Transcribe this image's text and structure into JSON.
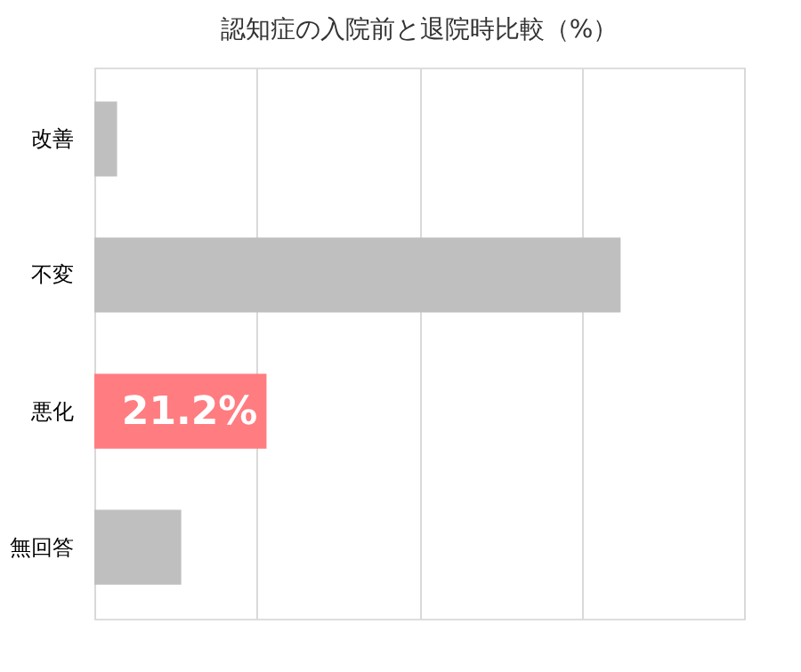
{
  "chart_data": {
    "type": "bar",
    "orientation": "horizontal",
    "title": "認知症の入院前と退院時比較（%）",
    "categories": [
      "改善",
      "不変",
      "悪化",
      "無回答"
    ],
    "values": [
      2.8,
      64.8,
      21.2,
      10.7
    ],
    "colors": [
      "#bfbfbf",
      "#bfbfbf",
      "#ff7c80",
      "#bfbfbf"
    ],
    "value_labels": [
      null,
      null,
      "21.2%",
      null
    ],
    "xlim": [
      0,
      80
    ],
    "xticks": [
      {
        "value": 0,
        "label": null
      },
      {
        "value": 20,
        "label": null
      },
      {
        "value": 40,
        "label": null
      },
      {
        "value": 60,
        "label": null
      },
      {
        "value": 80,
        "label": null
      }
    ],
    "grid": "x",
    "tick_labels": "y"
  }
}
